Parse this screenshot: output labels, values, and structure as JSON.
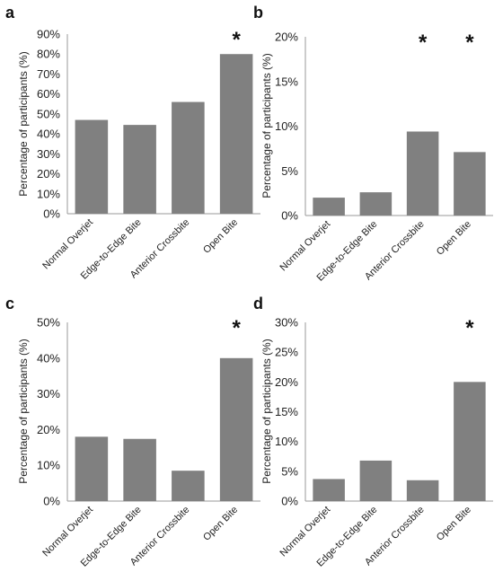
{
  "colors": {
    "bar": "#808080",
    "axis": "#9a9a9a",
    "grid": "#d9d9d9"
  },
  "chart_data": [
    {
      "panel": "a",
      "type": "bar",
      "categories": [
        "Normal Overjet",
        "Edge-to-Edge Bite",
        "Anterior Crossbite",
        "Open Bite"
      ],
      "values": [
        47,
        44.5,
        56,
        80
      ],
      "significant": [
        false,
        false,
        false,
        true
      ],
      "ylabel": "Percentage of participants (%)",
      "ylim": [
        0,
        90
      ],
      "yticks": [
        0,
        10,
        20,
        30,
        40,
        50,
        60,
        70,
        80,
        90
      ],
      "tick_format": "percent",
      "grid": false,
      "annotation": "*"
    },
    {
      "panel": "b",
      "type": "bar",
      "categories": [
        "Normal Overjet",
        "Edge-to-Edge Bite",
        "Anterior Crossbite",
        "Open Bite"
      ],
      "values": [
        2.0,
        2.6,
        9.4,
        7.1
      ],
      "significant": [
        false,
        false,
        true,
        true
      ],
      "ylabel": "Percentage of participants (%)",
      "ylim": [
        0,
        20
      ],
      "yticks": [
        0,
        5,
        10,
        15,
        20
      ],
      "tick_format": "percent",
      "grid": false,
      "annotation": "*"
    },
    {
      "panel": "c",
      "type": "bar",
      "categories": [
        "Normal Overjet",
        "Edge-to-Edge Bite",
        "Anterior Crossbite",
        "Open Bite"
      ],
      "values": [
        18,
        17.4,
        8.5,
        40
      ],
      "significant": [
        false,
        false,
        false,
        true
      ],
      "ylabel": "Percentage of participants (%)",
      "ylim": [
        0,
        50
      ],
      "yticks": [
        0,
        10,
        20,
        30,
        40,
        50
      ],
      "tick_format": "percent",
      "grid": false,
      "annotation": "*"
    },
    {
      "panel": "d",
      "type": "bar",
      "categories": [
        "Normal Overjet",
        "Edge-to-Edge Bite",
        "Anterior Crossbite",
        "Open Bite"
      ],
      "values": [
        3.7,
        6.8,
        3.5,
        20
      ],
      "significant": [
        false,
        false,
        false,
        true
      ],
      "ylabel": "Percentage of participants (%)",
      "ylim": [
        0,
        30
      ],
      "yticks": [
        0,
        5,
        10,
        15,
        20,
        25,
        30
      ],
      "tick_format": "percent",
      "grid": false,
      "annotation": "*"
    }
  ]
}
